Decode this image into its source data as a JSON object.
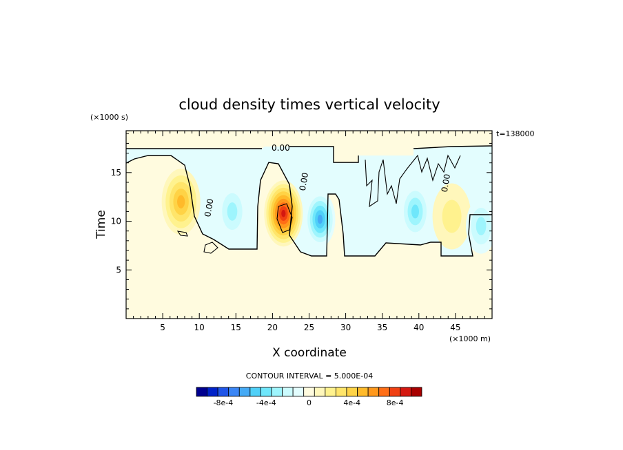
{
  "chart_data": {
    "type": "heatmap",
    "title": "cloud density times vertical velocity",
    "xlabel": "X coordinate",
    "ylabel": "Time",
    "x_units": "(×1000 m)",
    "y_units": "(×1000 s)",
    "time_label": "t=138000",
    "xlim": [
      0,
      50
    ],
    "ylim": [
      0,
      19.3
    ],
    "x_ticks": [
      5,
      10,
      15,
      20,
      25,
      30,
      35,
      40,
      45
    ],
    "y_ticks": [
      5,
      10,
      15
    ],
    "contour_interval_label": "CONTOUR INTERVAL = 5.000E-04",
    "contour_labels": [
      "0.00",
      "0.00",
      "0.00",
      "0.00"
    ],
    "background_value": 0,
    "colorbar": {
      "levels": [
        -0.001,
        -0.0009,
        -0.0008,
        -0.0007,
        -0.0006,
        -0.0005,
        -0.0004,
        -0.0003,
        -0.0002,
        -0.0001,
        0,
        0.0001,
        0.0002,
        0.0003,
        0.0004,
        0.0005,
        0.0006,
        0.0007,
        0.0008,
        0.0009,
        0.001
      ],
      "colors": [
        "#00008f",
        "#0022c8",
        "#1f55e8",
        "#3b86f5",
        "#45aaf5",
        "#4fd0f8",
        "#6fe7fb",
        "#9ef5fd",
        "#cbfbfe",
        "#e3fdfe",
        "#fffbdf",
        "#fff7bb",
        "#fff28e",
        "#ffe56a",
        "#ffd346",
        "#ffba2a",
        "#ff981c",
        "#ff6e16",
        "#f04012",
        "#d41810",
        "#a80000"
      ],
      "tick_labels": [
        "-8e-4",
        "-4e-4",
        "0",
        "4e-4",
        "8e-4"
      ],
      "tick_values": [
        -0.0008,
        -0.0004,
        0,
        0.0004,
        0.0008
      ]
    },
    "features": [
      {
        "kind": "positive",
        "x": 7.5,
        "y": 12,
        "peak": 0.0005
      },
      {
        "kind": "positive",
        "x": 21.5,
        "y": 10.8,
        "peak": 0.0009
      },
      {
        "kind": "negative",
        "x": 14.5,
        "y": 11,
        "peak": -0.0003
      },
      {
        "kind": "negative",
        "x": 26.5,
        "y": 10.2,
        "peak": -0.0006
      },
      {
        "kind": "negative",
        "x": 39.5,
        "y": 11,
        "peak": -0.0004
      },
      {
        "kind": "positive",
        "x": 44.5,
        "y": 10.5,
        "peak": 0.0002
      },
      {
        "kind": "negative",
        "x": 48.5,
        "y": 9.5,
        "peak": -0.0003
      }
    ]
  }
}
